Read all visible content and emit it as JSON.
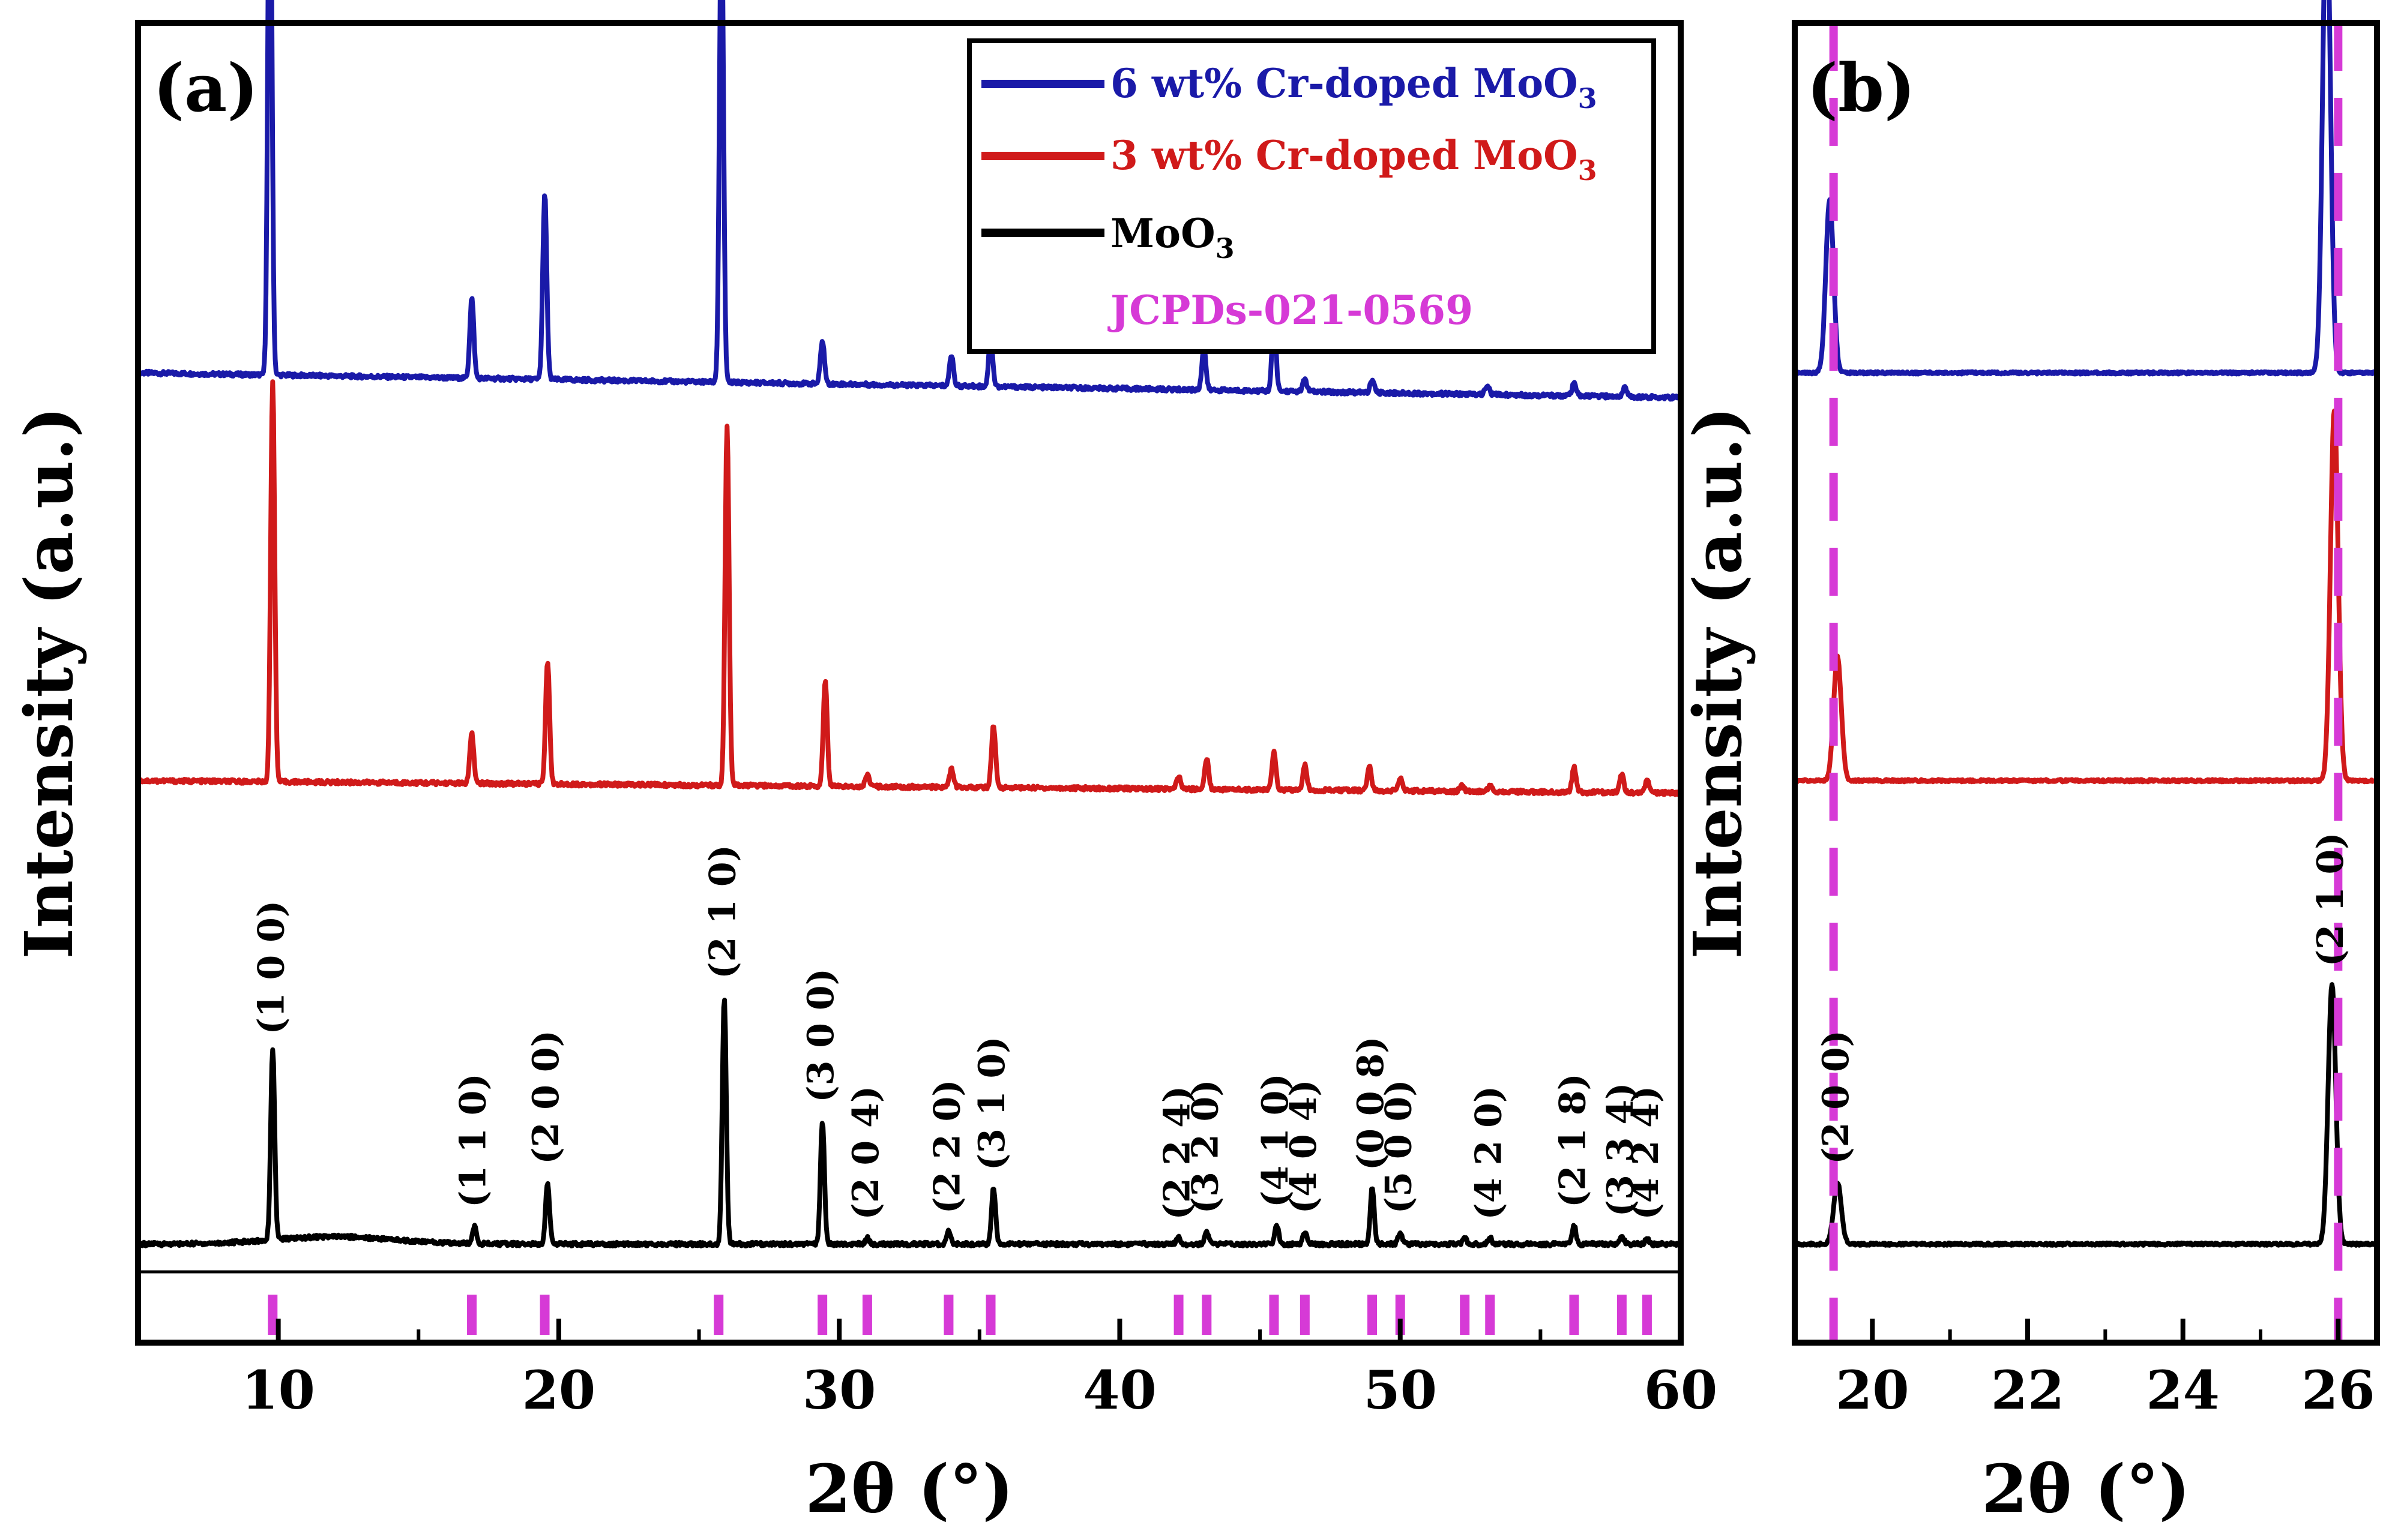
{
  "chart_data": [
    {
      "panel": "(a)",
      "type": "line",
      "xlabel": "2θ (°)",
      "ylabel": "Intensity (a.u.)",
      "xlim": [
        5,
        60
      ],
      "xticks": [
        10,
        20,
        30,
        40,
        50,
        60
      ],
      "xtick_labels": [
        "10",
        "20",
        "30",
        "40",
        "50",
        "60"
      ],
      "yticks_shown": false,
      "legend": {
        "position": "top-right",
        "entries": [
          {
            "label": "6 wt% Cr-doped MoO",
            "sub": "3",
            "color": "#1a1aa8",
            "style": "line"
          },
          {
            "label": "3 wt% Cr-doped MoO",
            "sub": "3",
            "color": "#d01a1a",
            "style": "line"
          },
          {
            "label": "MoO",
            "sub": "3",
            "color": "#000000",
            "style": "line"
          },
          {
            "label": "JCPDs-021-0569",
            "sub": "",
            "color": "#d63ad6",
            "style": "text"
          }
        ]
      },
      "series": [
        {
          "name": "6 wt% Cr-doped MoO3",
          "color": "#1a1aa8",
          "baseline": 1.45,
          "drift": -0.04,
          "peaks": [
            [
              9.7,
              0.95
            ],
            [
              16.9,
              0.13
            ],
            [
              19.5,
              0.3
            ],
            [
              25.8,
              0.78
            ],
            [
              29.4,
              0.07
            ],
            [
              34.0,
              0.05
            ],
            [
              35.4,
              0.08
            ],
            [
              43.0,
              0.07
            ],
            [
              45.5,
              0.12
            ],
            [
              46.6,
              0.02
            ],
            [
              49.0,
              0.02
            ],
            [
              53.1,
              0.015
            ],
            [
              56.2,
              0.02
            ],
            [
              58.0,
              0.015
            ]
          ]
        },
        {
          "name": "3 wt% Cr-doped MoO3",
          "color": "#d01a1a",
          "baseline": 0.79,
          "drift": -0.02,
          "peaks": [
            [
              9.8,
              0.65
            ],
            [
              16.9,
              0.08
            ],
            [
              19.6,
              0.2
            ],
            [
              26.0,
              0.58
            ],
            [
              29.5,
              0.17
            ],
            [
              31.0,
              0.02
            ],
            [
              34.0,
              0.03
            ],
            [
              35.5,
              0.1
            ],
            [
              42.1,
              0.02
            ],
            [
              43.1,
              0.05
            ],
            [
              45.5,
              0.06
            ],
            [
              46.6,
              0.04
            ],
            [
              48.9,
              0.04
            ],
            [
              50.0,
              0.02
            ],
            [
              52.2,
              0.01
            ],
            [
              53.2,
              0.01
            ],
            [
              56.2,
              0.04
            ],
            [
              57.9,
              0.03
            ],
            [
              58.8,
              0.02
            ]
          ]
        },
        {
          "name": "MoO3",
          "color": "#000000",
          "baseline": 0.04,
          "drift": 0.0,
          "peaks": [
            [
              9.8,
              0.31
            ],
            [
              17.0,
              0.03
            ],
            [
              19.6,
              0.1
            ],
            [
              25.9,
              0.4
            ],
            [
              29.4,
              0.2
            ],
            [
              31.0,
              0.01
            ],
            [
              33.9,
              0.02
            ],
            [
              35.5,
              0.09
            ],
            [
              42.1,
              0.01
            ],
            [
              43.1,
              0.02
            ],
            [
              45.6,
              0.03
            ],
            [
              46.6,
              0.02
            ],
            [
              49.0,
              0.09
            ],
            [
              50.0,
              0.02
            ],
            [
              52.3,
              0.01
            ],
            [
              53.2,
              0.01
            ],
            [
              56.2,
              0.03
            ],
            [
              57.9,
              0.015
            ],
            [
              58.8,
              0.01
            ]
          ]
        }
      ],
      "reference": {
        "name": "JCPDs-021-0569",
        "color": "#d63ad6",
        "positions": [
          9.8,
          16.9,
          19.5,
          25.7,
          29.4,
          31.0,
          33.9,
          35.4,
          42.1,
          43.1,
          45.5,
          46.6,
          49.0,
          50.0,
          52.3,
          53.2,
          56.2,
          57.9,
          58.8
        ]
      },
      "annotations": [
        {
          "text": "(1 0 0)",
          "x": 9.8
        },
        {
          "text": "(1 1 0)",
          "x": 17.0
        },
        {
          "text": "(2 0 0)",
          "x": 19.6
        },
        {
          "text": "(2 1 0)",
          "x": 25.9
        },
        {
          "text": "(3 0 0)",
          "x": 29.4
        },
        {
          "text": "(2 0 4)",
          "x": 31.0
        },
        {
          "text": "(2 2 0)",
          "x": 33.9
        },
        {
          "text": "(3 1 0)",
          "x": 35.5
        },
        {
          "text": "(2 2 4)",
          "x": 42.1
        },
        {
          "text": "(3 2 0)",
          "x": 43.1
        },
        {
          "text": "(4 1 0)",
          "x": 45.6
        },
        {
          "text": "(4 0 4)",
          "x": 46.6
        },
        {
          "text": "(0 0 8)",
          "x": 49.0
        },
        {
          "text": "(5 0 0)",
          "x": 50.0
        },
        {
          "text": "(4 2 0)",
          "x": 53.2
        },
        {
          "text": "(2 1 8)",
          "x": 56.2
        },
        {
          "text": "(3 3 4)",
          "x": 57.9
        },
        {
          "text": "(4 2 4)",
          "x": 58.8
        }
      ]
    },
    {
      "panel": "(b)",
      "type": "line",
      "xlabel": "2θ (°)",
      "ylabel": "Intensity (a.u.)",
      "xlim": [
        19,
        26.5
      ],
      "xticks": [
        20,
        22,
        24,
        26
      ],
      "xtick_labels": [
        "20",
        "22",
        "24",
        "26"
      ],
      "yticks_shown": false,
      "series": [
        {
          "name": "6 wt% Cr-doped MoO3",
          "color": "#1a1aa8",
          "baseline": 1.45,
          "drift": 0.0,
          "peaks": [
            [
              19.45,
              0.28
            ],
            [
              25.85,
              0.78
            ]
          ]
        },
        {
          "name": "3 wt% Cr-doped MoO3",
          "color": "#d01a1a",
          "baseline": 0.79,
          "drift": 0.0,
          "peaks": [
            [
              19.55,
              0.2
            ],
            [
              25.95,
              0.6
            ]
          ]
        },
        {
          "name": "MoO3",
          "color": "#000000",
          "baseline": 0.04,
          "drift": 0.0,
          "peaks": [
            [
              19.55,
              0.1
            ],
            [
              25.92,
              0.42
            ]
          ]
        }
      ],
      "reference": {
        "name": "JCPDs-021-0569",
        "color": "#d63ad6",
        "positions": [
          19.5,
          26.0
        ]
      },
      "annotations": [
        {
          "text": "(2 0 0)",
          "x": 19.55
        },
        {
          "text": "(2 1 0)",
          "x": 25.92
        }
      ]
    }
  ]
}
